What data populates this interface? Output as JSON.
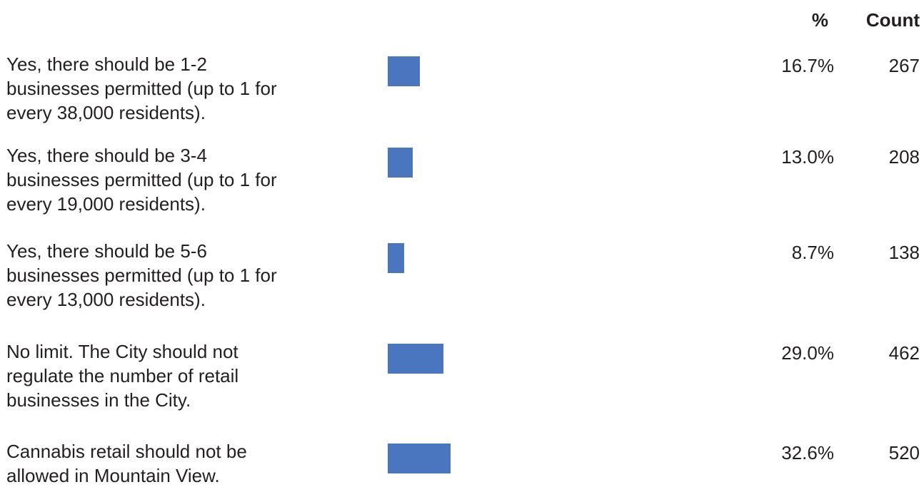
{
  "chart_data": {
    "type": "bar",
    "orientation": "horizontal",
    "columns": {
      "percent_header": "%",
      "count_header": "Count"
    },
    "bar_color": "#4a76c0",
    "xlim": [
      0,
      100
    ],
    "categories": [
      "Yes, there should be 1-2\nbusinesses permitted (up to 1 for\nevery 38,000 residents).",
      "Yes, there should be 3-4\nbusinesses permitted (up to 1 for\nevery 19,000 residents).",
      "Yes, there should be 5-6\nbusinesses permitted (up to 1 for\nevery 13,000 residents).",
      "No limit. The City should not\nregulate the number of retail\nbusinesses in the City.",
      "Cannabis retail should not be\nallowed in Mountain View."
    ],
    "values": [
      16.7,
      13.0,
      8.7,
      29.0,
      32.6
    ],
    "percent_labels": [
      "16.7%",
      "13.0%",
      "8.7%",
      "29.0%",
      "32.6%"
    ],
    "counts": [
      "267",
      "208",
      "138",
      "462",
      "520"
    ]
  }
}
